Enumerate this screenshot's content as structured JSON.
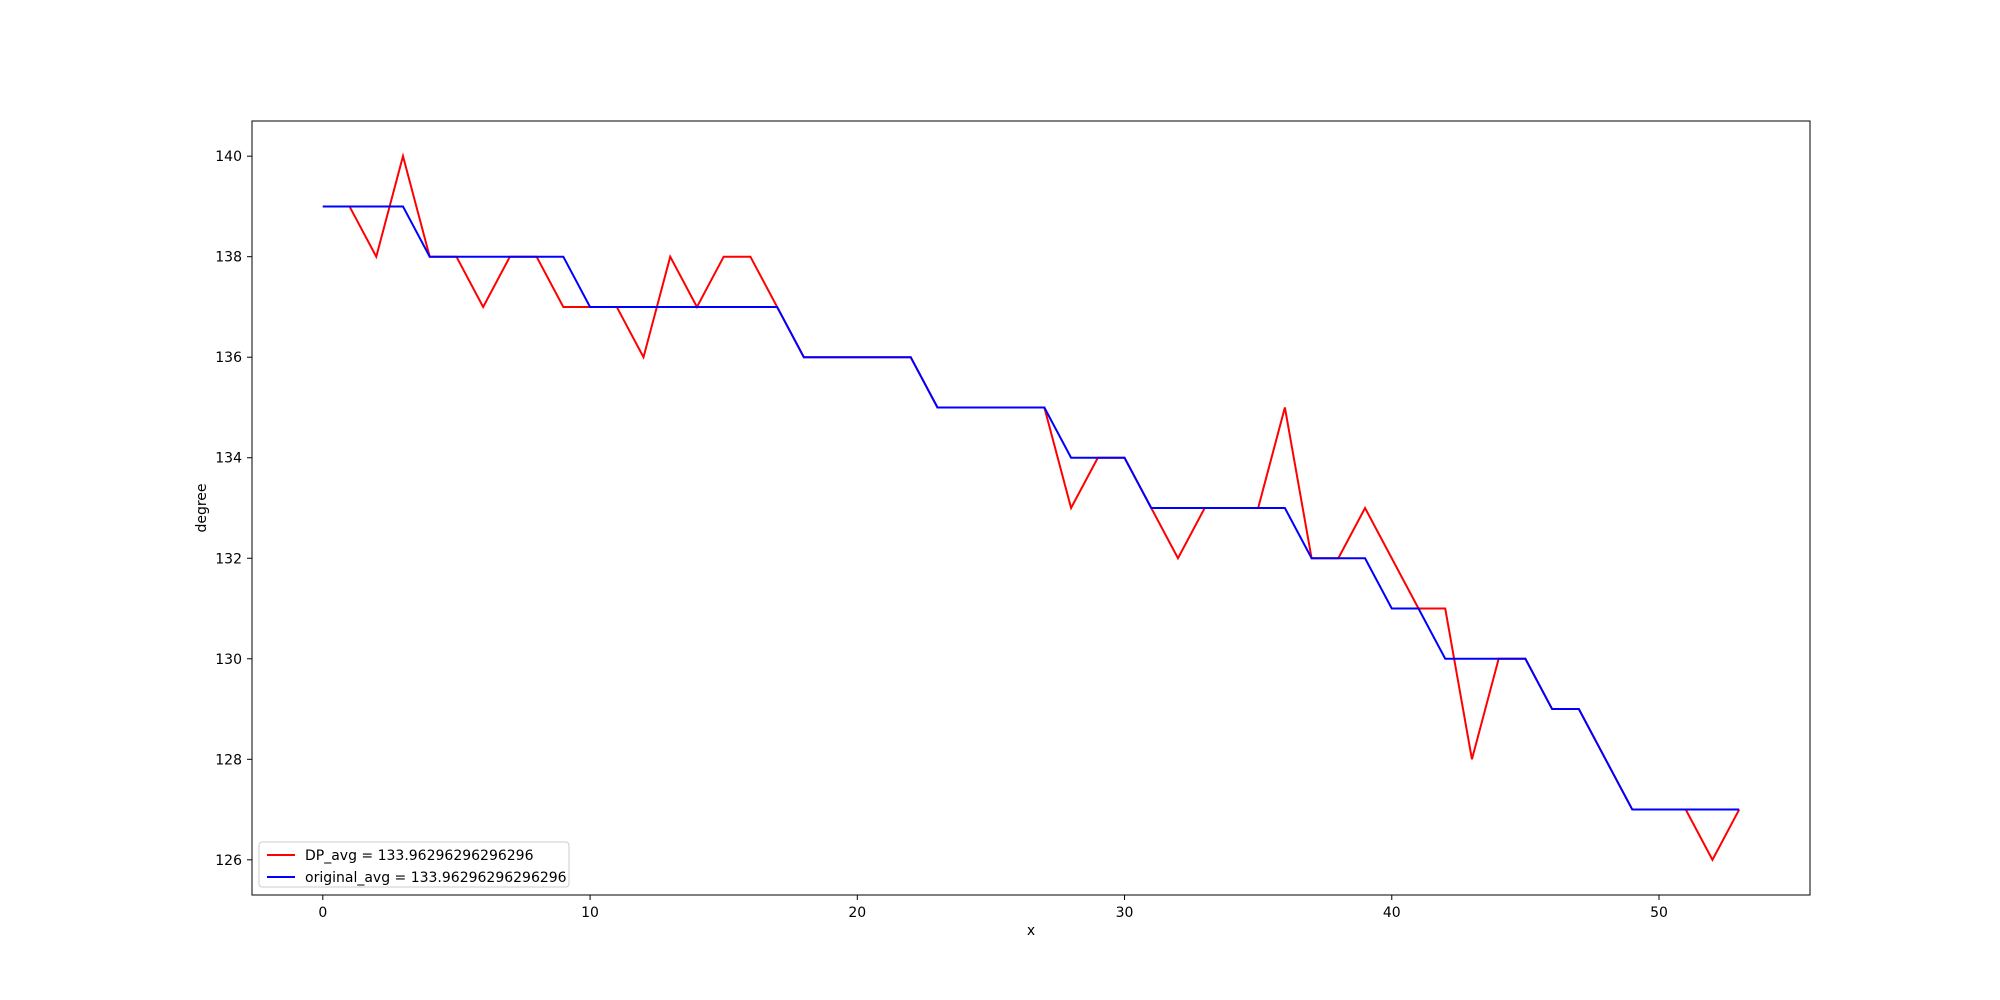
{
  "chart_data": {
    "type": "line",
    "title": "",
    "xlabel": "x",
    "ylabel": "degree",
    "xlim": [
      -2.65,
      55.65
    ],
    "ylim": [
      125.3,
      140.7
    ],
    "xticks": [
      0,
      10,
      20,
      30,
      40,
      50
    ],
    "yticks": [
      126,
      128,
      130,
      132,
      134,
      136,
      138,
      140
    ],
    "grid": false,
    "legend_position": "lower-left",
    "series": [
      {
        "name": "DP_avg = 133.96296296296296",
        "color": "#ff0000",
        "x": [
          0,
          1,
          2,
          3,
          4,
          5,
          6,
          7,
          8,
          9,
          10,
          11,
          12,
          13,
          14,
          15,
          16,
          17,
          18,
          19,
          20,
          21,
          22,
          23,
          24,
          25,
          26,
          27,
          28,
          29,
          30,
          31,
          32,
          33,
          34,
          35,
          36,
          37,
          38,
          39,
          40,
          41,
          42,
          43,
          44,
          45,
          46,
          47,
          48,
          49,
          50,
          51,
          52,
          53
        ],
        "values": [
          139,
          139,
          138,
          140,
          138,
          138,
          137,
          138,
          138,
          137,
          137,
          137,
          136,
          138,
          137,
          138,
          138,
          137,
          136,
          136,
          136,
          136,
          136,
          135,
          135,
          135,
          135,
          135,
          133,
          134,
          134,
          133,
          132,
          133,
          133,
          133,
          135,
          132,
          132,
          133,
          132,
          131,
          131,
          128,
          130,
          130,
          129,
          129,
          128,
          127,
          127,
          127,
          126,
          127
        ]
      },
      {
        "name": "original_avg = 133.96296296296296",
        "color": "#0000ff",
        "x": [
          0,
          1,
          2,
          3,
          4,
          5,
          6,
          7,
          8,
          9,
          10,
          11,
          12,
          13,
          14,
          15,
          16,
          17,
          18,
          19,
          20,
          21,
          22,
          23,
          24,
          25,
          26,
          27,
          28,
          29,
          30,
          31,
          32,
          33,
          34,
          35,
          36,
          37,
          38,
          39,
          40,
          41,
          42,
          43,
          44,
          45,
          46,
          47,
          48,
          49,
          50,
          51,
          52,
          53
        ],
        "values": [
          139,
          139,
          139,
          139,
          138,
          138,
          138,
          138,
          138,
          138,
          137,
          137,
          137,
          137,
          137,
          137,
          137,
          137,
          136,
          136,
          136,
          136,
          136,
          135,
          135,
          135,
          135,
          135,
          134,
          134,
          134,
          133,
          133,
          133,
          133,
          133,
          133,
          132,
          132,
          132,
          131,
          131,
          130,
          130,
          130,
          130,
          129,
          129,
          128,
          127,
          127,
          127,
          127,
          127
        ]
      }
    ]
  }
}
